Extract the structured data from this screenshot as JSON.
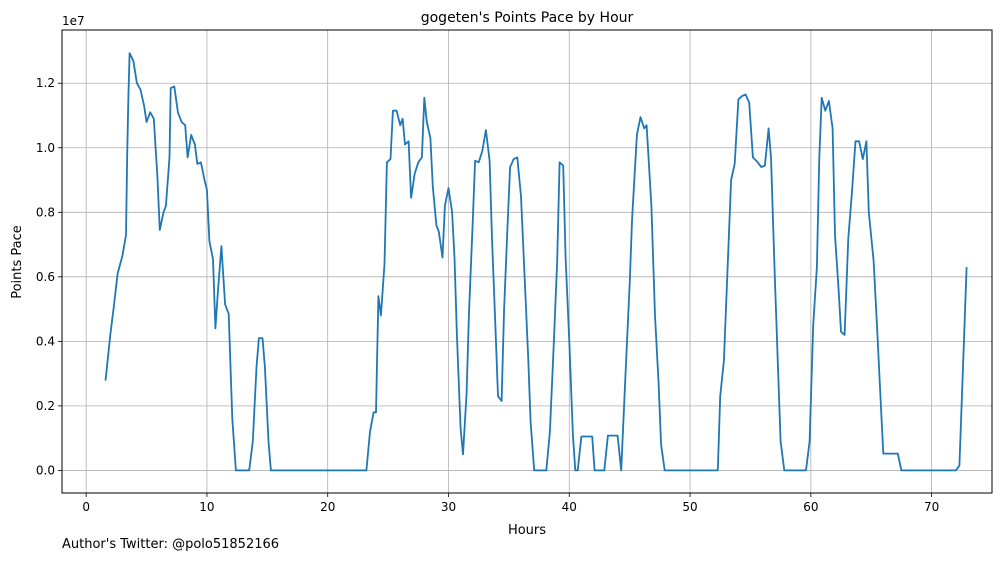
{
  "footer": {
    "author": "Author's Twitter: @polo51852166"
  },
  "chart_data": {
    "type": "line",
    "title": "gogeten's Points Pace by Hour",
    "xlabel": "Hours",
    "ylabel": "Points Pace",
    "y_offset_label": "1e7",
    "xlim": [
      -2,
      75
    ],
    "ylim": [
      -0.07,
      1.365
    ],
    "x_ticks": [
      0,
      10,
      20,
      30,
      40,
      50,
      60,
      70
    ],
    "y_ticks": [
      0.0,
      0.2,
      0.4,
      0.6,
      0.8,
      1.0,
      1.2
    ],
    "y_tick_labels": [
      "0.0",
      "0.2",
      "0.4",
      "0.6",
      "0.8",
      "1.0",
      "1.2"
    ],
    "grid": true,
    "line_color": "#1f77b4",
    "series": [
      {
        "points": [
          [
            1.6,
            0.278
          ],
          [
            2.0,
            0.42
          ],
          [
            2.3,
            0.51
          ],
          [
            2.6,
            0.61
          ],
          [
            3.0,
            0.665
          ],
          [
            3.3,
            0.73
          ],
          [
            3.4,
            0.98
          ],
          [
            3.5,
            1.16
          ],
          [
            3.6,
            1.293
          ],
          [
            3.9,
            1.27
          ],
          [
            4.2,
            1.2
          ],
          [
            4.5,
            1.18
          ],
          [
            4.8,
            1.13
          ],
          [
            5.0,
            1.08
          ],
          [
            5.3,
            1.11
          ],
          [
            5.6,
            1.09
          ],
          [
            5.9,
            0.91
          ],
          [
            6.1,
            0.745
          ],
          [
            6.4,
            0.8
          ],
          [
            6.6,
            0.82
          ],
          [
            6.9,
            0.97
          ],
          [
            7.0,
            1.185
          ],
          [
            7.3,
            1.19
          ],
          [
            7.6,
            1.11
          ],
          [
            7.9,
            1.08
          ],
          [
            8.2,
            1.07
          ],
          [
            8.4,
            0.97
          ],
          [
            8.7,
            1.04
          ],
          [
            9.0,
            1.01
          ],
          [
            9.2,
            0.95
          ],
          [
            9.5,
            0.955
          ],
          [
            9.8,
            0.9
          ],
          [
            10.0,
            0.87
          ],
          [
            10.2,
            0.71
          ],
          [
            10.5,
            0.655
          ],
          [
            10.7,
            0.44
          ],
          [
            10.9,
            0.55
          ],
          [
            11.2,
            0.695
          ],
          [
            11.5,
            0.515
          ],
          [
            11.8,
            0.485
          ],
          [
            12.1,
            0.16
          ],
          [
            12.4,
            0.0
          ],
          [
            13.5,
            0.0
          ],
          [
            13.8,
            0.09
          ],
          [
            14.1,
            0.32
          ],
          [
            14.3,
            0.41
          ],
          [
            14.6,
            0.41
          ],
          [
            14.8,
            0.32
          ],
          [
            15.1,
            0.09
          ],
          [
            15.3,
            0.0
          ],
          [
            23.2,
            0.0
          ],
          [
            23.5,
            0.12
          ],
          [
            23.8,
            0.18
          ],
          [
            24.0,
            0.18
          ],
          [
            24.2,
            0.54
          ],
          [
            24.4,
            0.48
          ],
          [
            24.7,
            0.64
          ],
          [
            24.9,
            0.955
          ],
          [
            25.2,
            0.965
          ],
          [
            25.4,
            1.115
          ],
          [
            25.7,
            1.115
          ],
          [
            26.0,
            1.07
          ],
          [
            26.2,
            1.09
          ],
          [
            26.4,
            1.01
          ],
          [
            26.7,
            1.02
          ],
          [
            26.9,
            0.845
          ],
          [
            27.2,
            0.92
          ],
          [
            27.5,
            0.955
          ],
          [
            27.8,
            0.97
          ],
          [
            28.0,
            1.155
          ],
          [
            28.2,
            1.08
          ],
          [
            28.5,
            1.03
          ],
          [
            28.7,
            0.88
          ],
          [
            29.0,
            0.76
          ],
          [
            29.2,
            0.74
          ],
          [
            29.5,
            0.66
          ],
          [
            29.7,
            0.82
          ],
          [
            30.0,
            0.875
          ],
          [
            30.3,
            0.8
          ],
          [
            30.5,
            0.66
          ],
          [
            30.7,
            0.42
          ],
          [
            31.0,
            0.13
          ],
          [
            31.2,
            0.05
          ],
          [
            31.5,
            0.24
          ],
          [
            31.7,
            0.49
          ],
          [
            32.0,
            0.76
          ],
          [
            32.2,
            0.96
          ],
          [
            32.5,
            0.955
          ],
          [
            32.8,
            0.99
          ],
          [
            33.1,
            1.055
          ],
          [
            33.4,
            0.96
          ],
          [
            33.6,
            0.72
          ],
          [
            33.9,
            0.43
          ],
          [
            34.1,
            0.23
          ],
          [
            34.4,
            0.215
          ],
          [
            34.6,
            0.5
          ],
          [
            34.9,
            0.77
          ],
          [
            35.1,
            0.94
          ],
          [
            35.4,
            0.965
          ],
          [
            35.7,
            0.97
          ],
          [
            36.0,
            0.85
          ],
          [
            36.3,
            0.6
          ],
          [
            36.6,
            0.35
          ],
          [
            36.8,
            0.15
          ],
          [
            37.1,
            0.0
          ],
          [
            38.1,
            0.0
          ],
          [
            38.4,
            0.12
          ],
          [
            38.7,
            0.38
          ],
          [
            39.0,
            0.65
          ],
          [
            39.2,
            0.955
          ],
          [
            39.5,
            0.945
          ],
          [
            39.7,
            0.66
          ],
          [
            40.0,
            0.4
          ],
          [
            40.3,
            0.11
          ],
          [
            40.5,
            0.0
          ],
          [
            40.7,
            0.0
          ],
          [
            41.0,
            0.105
          ],
          [
            41.9,
            0.105
          ],
          [
            42.1,
            0.0
          ],
          [
            42.9,
            0.0
          ],
          [
            43.2,
            0.108
          ],
          [
            44.0,
            0.108
          ],
          [
            44.3,
            0.0
          ],
          [
            44.6,
            0.25
          ],
          [
            45.0,
            0.58
          ],
          [
            45.2,
            0.78
          ],
          [
            45.6,
            1.04
          ],
          [
            45.9,
            1.095
          ],
          [
            46.2,
            1.06
          ],
          [
            46.4,
            1.07
          ],
          [
            46.8,
            0.82
          ],
          [
            47.1,
            0.48
          ],
          [
            47.4,
            0.27
          ],
          [
            47.6,
            0.08
          ],
          [
            47.9,
            0.0
          ],
          [
            52.3,
            0.0
          ],
          [
            52.5,
            0.23
          ],
          [
            52.8,
            0.34
          ],
          [
            53.1,
            0.62
          ],
          [
            53.4,
            0.9
          ],
          [
            53.7,
            0.95
          ],
          [
            54.0,
            1.15
          ],
          [
            54.3,
            1.16
          ],
          [
            54.6,
            1.165
          ],
          [
            54.9,
            1.14
          ],
          [
            55.2,
            0.97
          ],
          [
            55.6,
            0.955
          ],
          [
            55.9,
            0.94
          ],
          [
            56.2,
            0.945
          ],
          [
            56.5,
            1.06
          ],
          [
            56.7,
            0.97
          ],
          [
            57.0,
            0.62
          ],
          [
            57.3,
            0.3
          ],
          [
            57.5,
            0.09
          ],
          [
            57.8,
            0.0
          ],
          [
            59.6,
            0.0
          ],
          [
            59.9,
            0.09
          ],
          [
            60.2,
            0.45
          ],
          [
            60.5,
            0.63
          ],
          [
            60.7,
            0.97
          ],
          [
            60.9,
            1.155
          ],
          [
            61.2,
            1.115
          ],
          [
            61.5,
            1.145
          ],
          [
            61.8,
            1.06
          ],
          [
            62.0,
            0.73
          ],
          [
            62.3,
            0.56
          ],
          [
            62.5,
            0.43
          ],
          [
            62.8,
            0.42
          ],
          [
            63.1,
            0.72
          ],
          [
            63.4,
            0.86
          ],
          [
            63.7,
            1.02
          ],
          [
            64.0,
            1.02
          ],
          [
            64.3,
            0.965
          ],
          [
            64.6,
            1.02
          ],
          [
            64.8,
            0.8
          ],
          [
            65.2,
            0.65
          ],
          [
            65.5,
            0.43
          ],
          [
            65.8,
            0.2
          ],
          [
            66.0,
            0.052
          ],
          [
            67.0,
            0.052
          ],
          [
            67.2,
            0.052
          ],
          [
            67.5,
            0.0
          ],
          [
            72.0,
            0.0
          ],
          [
            72.3,
            0.015
          ],
          [
            72.6,
            0.32
          ],
          [
            72.9,
            0.63
          ]
        ]
      }
    ]
  }
}
